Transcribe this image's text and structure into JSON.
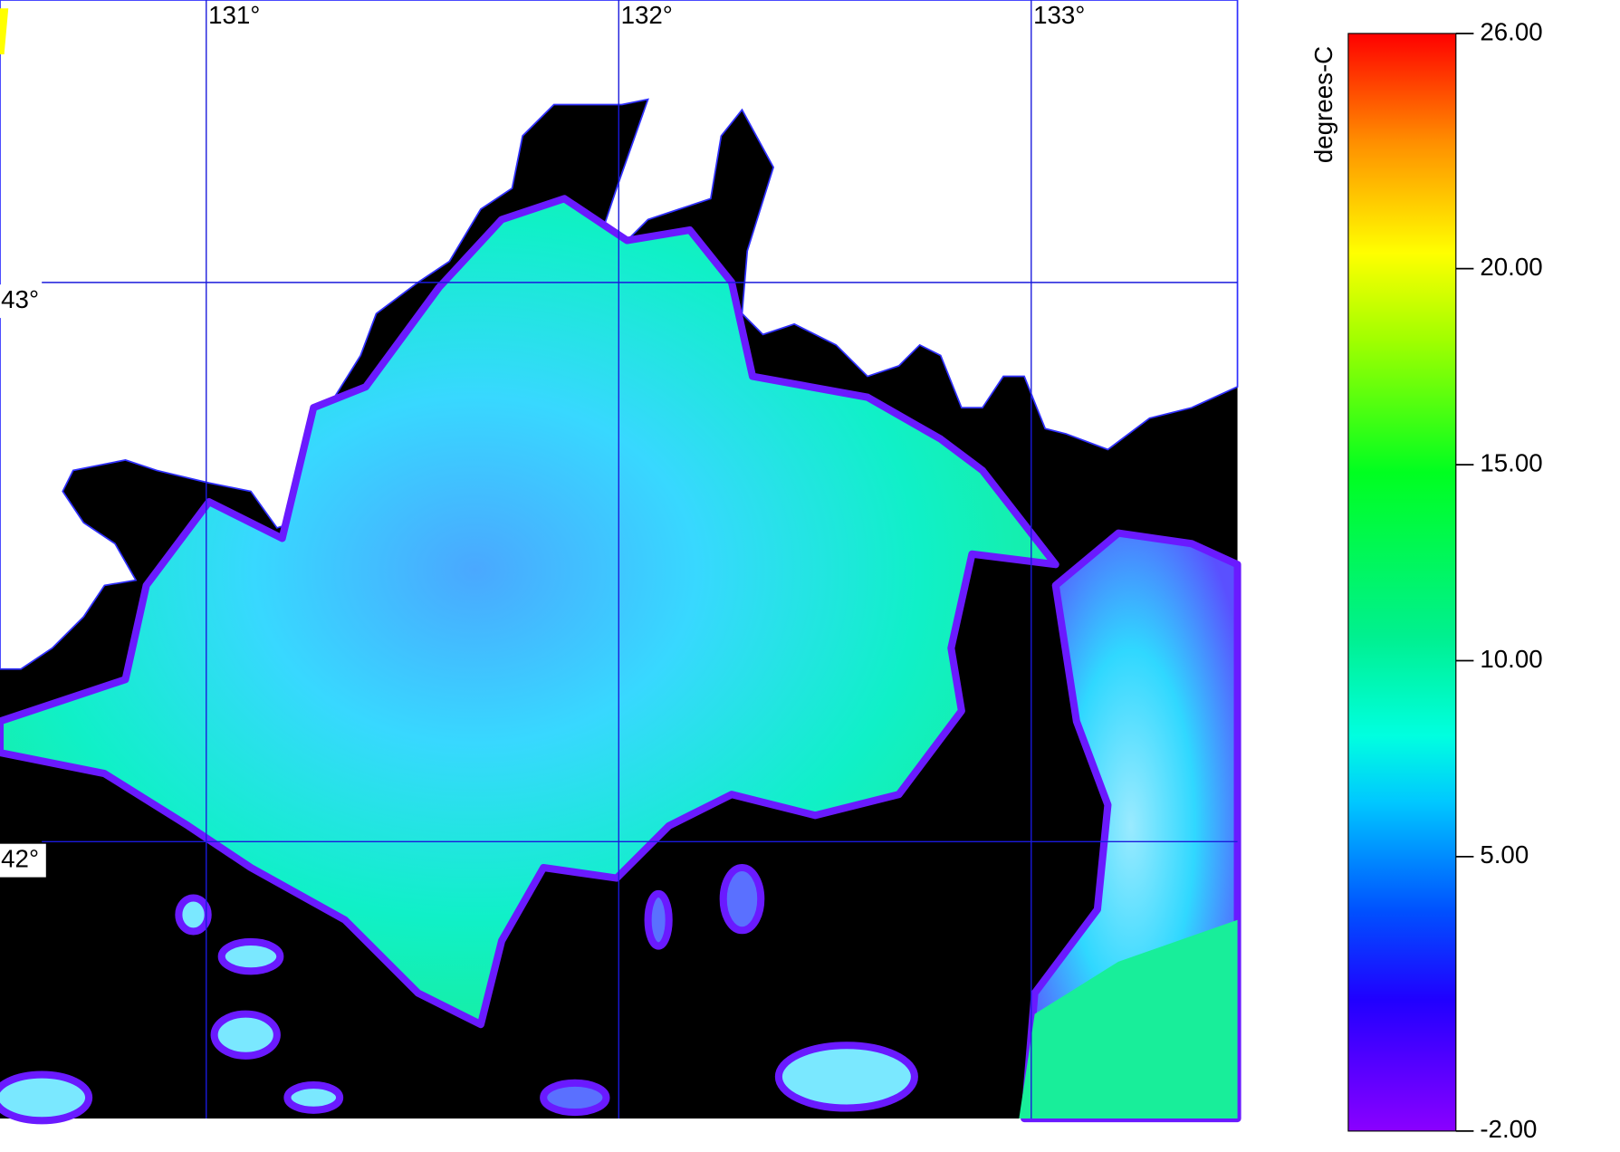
{
  "map": {
    "lon_ticks": [
      {
        "value": 131,
        "label": "131°"
      },
      {
        "value": 132,
        "label": "132°"
      },
      {
        "value": 133,
        "label": "133°"
      }
    ],
    "lat_ticks": [
      {
        "value": 43,
        "label": "43°"
      },
      {
        "value": 42,
        "label": "42°"
      }
    ],
    "xlim": [
      130.5,
      133.5
    ],
    "ylim": [
      41.505,
      43.505
    ]
  },
  "colorbar": {
    "label": "degrees-C",
    "range": [
      -2,
      26
    ],
    "ticks": [
      {
        "value": 26,
        "label": "26.00"
      },
      {
        "value": 20,
        "label": "20.00"
      },
      {
        "value": 15,
        "label": "15.00"
      },
      {
        "value": 10,
        "label": "10.00"
      },
      {
        "value": 5,
        "label": "5.00"
      },
      {
        "value": -2,
        "label": "-2.00"
      }
    ]
  }
}
